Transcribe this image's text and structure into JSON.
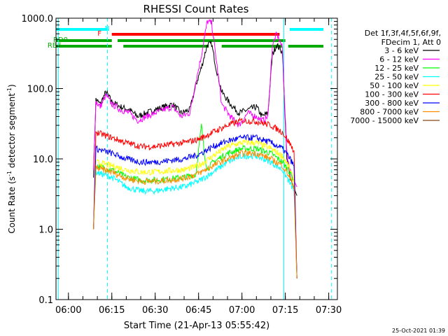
{
  "chart_data": {
    "type": "line",
    "title": "RHESSI Count Rates",
    "xlabel": "Start Time (21-Apr-13 05:55:42)",
    "ylabel_prefix": "Count Rate (s",
    "ylabel_exp": "-1",
    "ylabel_suffix": " detector segment",
    "ylabel_exp2": "-1",
    "ylabel_close": ")",
    "y_scale": "log",
    "xlim": [
      "05:55:42",
      "07:33:00"
    ],
    "ylim": [
      0.1,
      1000
    ],
    "x_ticks": [
      "06:00",
      "06:15",
      "06:30",
      "06:45",
      "07:00",
      "07:15",
      "07:30"
    ],
    "y_ticks": [
      "0.1",
      "1.0",
      "10.0",
      "100.0",
      "1000.0"
    ],
    "legend_header": [
      "Det 1f,3f,4f,5f,6f,9f,",
      "FDecim 1, Att 0"
    ],
    "legend_placement": "right",
    "timestamp": "25-Oct-2021 01:39",
    "background": "#ffffff",
    "axis_color": "#000000",
    "series": [
      {
        "name": "3 - 6 keV",
        "color": "#000000",
        "x": [
          "06:04:00",
          "06:06:00",
          "06:08:40",
          "06:09:30",
          "06:11:00",
          "06:13:00",
          "06:15:00",
          "06:18:00",
          "06:21:00",
          "06:24:00",
          "06:27:00",
          "06:30:00",
          "06:33:00",
          "06:36:00",
          "06:39:00",
          "06:42:00",
          "06:44:00",
          "06:46:00",
          "06:48:00",
          "06:49:30",
          "06:51:00",
          "06:53:00",
          "06:56:00",
          "06:59:00",
          "07:02:00",
          "07:05:00",
          "07:07:00",
          "07:09:00",
          "07:10:30",
          "07:12:00",
          "07:14:00",
          "07:15:30",
          "07:17:00",
          "07:19:00"
        ],
        "y": [
          null,
          null,
          6,
          70,
          60,
          90,
          65,
          55,
          50,
          40,
          45,
          50,
          55,
          60,
          45,
          50,
          110,
          200,
          420,
          430,
          200,
          90,
          60,
          45,
          50,
          55,
          40,
          45,
          300,
          420,
          330,
          10,
          5,
          3
        ]
      },
      {
        "name": "6 - 12 keV",
        "color": "#ff00ff",
        "x": [
          "06:08:40",
          "06:09:30",
          "06:11:00",
          "06:13:00",
          "06:15:00",
          "06:18:00",
          "06:21:00",
          "06:24:00",
          "06:27:00",
          "06:30:00",
          "06:33:00",
          "06:36:00",
          "06:39:00",
          "06:42:00",
          "06:44:00",
          "06:46:00",
          "06:48:00",
          "06:49:30",
          "06:51:00",
          "06:53:00",
          "06:56:00",
          "06:59:00",
          "07:02:00",
          "07:05:00",
          "07:07:00",
          "07:09:00",
          "07:10:30",
          "07:12:00",
          "07:14:00",
          "07:15:30",
          "07:17:00",
          "07:19:00"
        ],
        "y": [
          7,
          65,
          55,
          80,
          60,
          50,
          45,
          35,
          40,
          45,
          50,
          55,
          40,
          45,
          120,
          300,
          900,
          850,
          280,
          60,
          40,
          30,
          45,
          40,
          35,
          40,
          400,
          600,
          380,
          12,
          6,
          4
        ]
      },
      {
        "name": "12 - 25 keV",
        "color": "#00ff00",
        "x": [
          "06:08:40",
          "06:09:30",
          "06:12:00",
          "06:15:00",
          "06:20:00",
          "06:25:00",
          "06:30:00",
          "06:35:00",
          "06:40:00",
          "06:44:00",
          "06:46:00",
          "06:47:00",
          "06:48:00",
          "06:50:00",
          "06:55:00",
          "07:00:00",
          "07:05:00",
          "07:10:00",
          "07:14:00",
          "07:16:00",
          "07:18:00",
          "07:19:00"
        ],
        "y": [
          1,
          8,
          7.5,
          7,
          5.5,
          5,
          5,
          5.2,
          5.5,
          6,
          30,
          12,
          7,
          9,
          12,
          14,
          14,
          12,
          9,
          7,
          5,
          0.2
        ]
      },
      {
        "name": "25 - 50 keV",
        "color": "#00ffff",
        "x": [
          "06:08:40",
          "06:09:30",
          "06:12:00",
          "06:15:00",
          "06:20:00",
          "06:25:00",
          "06:30:00",
          "06:35:00",
          "06:40:00",
          "06:45:00",
          "06:50:00",
          "06:55:00",
          "07:00:00",
          "07:05:00",
          "07:10:00",
          "07:14:00",
          "07:16:00",
          "07:18:00",
          "07:19:00"
        ],
        "y": [
          1,
          6.5,
          6,
          5.5,
          4,
          3.5,
          3.5,
          3.8,
          4,
          4.8,
          6.5,
          9,
          11,
          11,
          9,
          7,
          5,
          3.5,
          0.2
        ]
      },
      {
        "name": "50 - 100 keV",
        "color": "#ffff00",
        "x": [
          "06:08:40",
          "06:09:30",
          "06:12:00",
          "06:15:00",
          "06:20:00",
          "06:25:00",
          "06:30:00",
          "06:35:00",
          "06:40:00",
          "06:45:00",
          "06:50:00",
          "06:55:00",
          "07:00:00",
          "07:05:00",
          "07:10:00",
          "07:14:00",
          "07:16:00",
          "07:18:00",
          "07:19:00"
        ],
        "y": [
          1,
          9,
          8.5,
          8,
          7,
          6.5,
          6.5,
          6.8,
          7,
          8,
          11,
          15,
          17,
          17,
          14,
          11,
          8,
          5,
          0.2
        ]
      },
      {
        "name": "100 - 300 keV",
        "color": "#ff0000",
        "x": [
          "06:08:40",
          "06:09:30",
          "06:12:00",
          "06:15:00",
          "06:20:00",
          "06:25:00",
          "06:30:00",
          "06:35:00",
          "06:40:00",
          "06:45:00",
          "06:50:00",
          "06:55:00",
          "07:00:00",
          "07:05:00",
          "07:10:00",
          "07:14:00",
          "07:16:00",
          "07:18:00",
          "07:19:00"
        ],
        "y": [
          1,
          24,
          22,
          20,
          17,
          15,
          15,
          16,
          17,
          19,
          24,
          30,
          35,
          34,
          30,
          24,
          18,
          13,
          0.2
        ]
      },
      {
        "name": "300 - 800 keV",
        "color": "#0000ff",
        "x": [
          "06:08:40",
          "06:09:30",
          "06:12:00",
          "06:15:00",
          "06:20:00",
          "06:25:00",
          "06:30:00",
          "06:35:00",
          "06:40:00",
          "06:45:00",
          "06:50:00",
          "06:55:00",
          "07:00:00",
          "07:05:00",
          "07:10:00",
          "07:14:00",
          "07:16:00",
          "07:18:00",
          "07:19:00"
        ],
        "y": [
          1,
          14,
          13,
          12,
          10,
          9,
          9,
          9.5,
          10,
          11.5,
          15,
          18,
          20,
          20,
          17,
          14,
          11,
          8,
          0.2
        ]
      },
      {
        "name": "800 - 7000 keV",
        "color": "#ff8c00",
        "x": [
          "06:08:40",
          "06:09:30",
          "06:12:00",
          "06:15:00",
          "06:20:00",
          "06:25:00",
          "06:30:00",
          "06:35:00",
          "06:40:00",
          "06:45:00",
          "06:50:00",
          "06:55:00",
          "07:00:00",
          "07:05:00",
          "07:10:00",
          "07:14:00",
          "07:16:00",
          "07:18:00",
          "07:19:00"
        ],
        "y": [
          1,
          7.5,
          7,
          6.5,
          5.3,
          4.8,
          4.8,
          5,
          5.3,
          6.2,
          8,
          10,
          12,
          12,
          10,
          8,
          6,
          4,
          0.2
        ]
      },
      {
        "name": "7000 - 15000 keV",
        "color": "#8b4513",
        "x": [],
        "y": []
      }
    ],
    "attenuator_bars": [
      {
        "label": "N",
        "color": "#00ffff",
        "segments": [
          [
            "05:55:42",
            "06:13:30"
          ],
          [
            "07:16:30",
            "07:31:00"
          ]
        ]
      },
      {
        "label": "F",
        "color": "#ff0000",
        "segments": [
          [
            "06:15:00",
            "07:13:00"
          ]
        ]
      },
      {
        "label": "RD0",
        "color": "#00aa00",
        "segments": [
          [
            "05:55:42",
            "06:15:00"
          ],
          [
            "06:17:00",
            "07:15:00"
          ]
        ]
      },
      {
        "label": "RB6",
        "color": "#00aa00",
        "segments": [
          [
            "05:55:42",
            "06:15:00"
          ],
          [
            "06:19:00",
            "06:48:30"
          ],
          [
            "06:53:00",
            "07:14:00"
          ],
          [
            "07:16:00",
            "07:33:00"
          ]
        ]
      }
    ],
    "vertical_markers": [
      {
        "x": "05:56:30",
        "color": "#00ffff",
        "style": "solid"
      },
      {
        "x": "06:13:30",
        "color": "#00ffff",
        "style": "dashed"
      },
      {
        "x": "07:14:30",
        "color": "#00ffff",
        "style": "solid"
      },
      {
        "x": "07:31:00",
        "color": "#00ffff",
        "style": "dashed"
      }
    ]
  }
}
